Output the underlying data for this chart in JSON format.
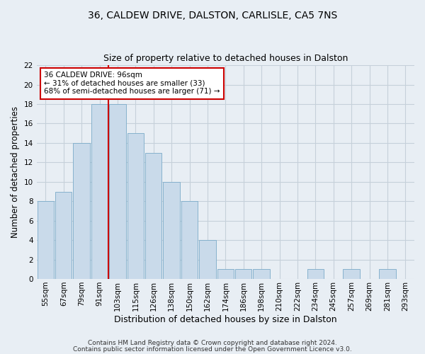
{
  "title1": "36, CALDEW DRIVE, DALSTON, CARLISLE, CA5 7NS",
  "title2": "Size of property relative to detached houses in Dalston",
  "xlabel": "Distribution of detached houses by size in Dalston",
  "ylabel": "Number of detached properties",
  "categories": [
    "55sqm",
    "67sqm",
    "79sqm",
    "91sqm",
    "103sqm",
    "115sqm",
    "126sqm",
    "138sqm",
    "150sqm",
    "162sqm",
    "174sqm",
    "186sqm",
    "198sqm",
    "210sqm",
    "222sqm",
    "234sqm",
    "245sqm",
    "257sqm",
    "269sqm",
    "281sqm",
    "293sqm"
  ],
  "values": [
    8,
    9,
    14,
    18,
    18,
    15,
    13,
    10,
    8,
    4,
    1,
    1,
    1,
    0,
    0,
    1,
    0,
    1,
    0,
    1,
    0
  ],
  "bar_color": "#c9daea",
  "bar_edge_color": "#7aaac8",
  "vline_color": "#cc0000",
  "vline_x": 3.5,
  "annotation_title": "36 CALDEW DRIVE: 96sqm",
  "annotation_line2": "← 31% of detached houses are smaller (33)",
  "annotation_line3": "68% of semi-detached houses are larger (71) →",
  "annotation_box_color": "#ffffff",
  "annotation_box_edge": "#cc0000",
  "ylim": [
    0,
    22
  ],
  "yticks": [
    0,
    2,
    4,
    6,
    8,
    10,
    12,
    14,
    16,
    18,
    20,
    22
  ],
  "footer1": "Contains HM Land Registry data © Crown copyright and database right 2024.",
  "footer2": "Contains public sector information licensed under the Open Government Licence v3.0.",
  "bg_color": "#e8eef4",
  "plot_bg_color": "#e8eef4",
  "grid_color": "#c5d0da",
  "title1_fontsize": 10,
  "title2_fontsize": 9,
  "xlabel_fontsize": 9,
  "ylabel_fontsize": 8.5,
  "tick_fontsize": 7.5,
  "footer_fontsize": 6.5
}
